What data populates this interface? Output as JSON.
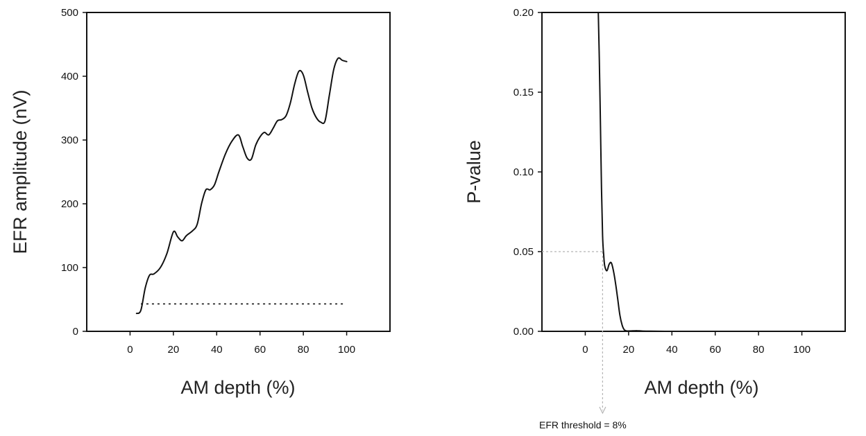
{
  "chart_data": [
    {
      "type": "line",
      "xlabel": "AM depth (%)",
      "ylabel": "EFR amplitude (nV)",
      "xlim": [
        -20,
        120
      ],
      "ylim": [
        0,
        500
      ],
      "x_ticks": [
        "0",
        "20",
        "40",
        "60",
        "80",
        "100"
      ],
      "y_ticks": [
        "0",
        "100",
        "200",
        "300",
        "400",
        "500"
      ],
      "grid": false,
      "series": [
        {
          "style": "solid",
          "color": "#111111",
          "x": [
            3,
            5,
            7,
            9,
            11,
            14,
            17,
            20,
            22,
            24,
            26,
            29,
            31,
            33,
            35,
            37,
            39,
            41,
            44,
            47,
            50,
            52,
            54,
            56,
            58,
            60,
            62,
            64,
            66,
            68,
            70,
            72,
            74,
            76,
            78,
            80,
            82,
            84,
            86,
            88,
            90,
            92,
            94,
            96,
            98,
            100
          ],
          "y": [
            28,
            33,
            68,
            88,
            90,
            100,
            122,
            156,
            148,
            142,
            150,
            158,
            168,
            200,
            222,
            222,
            230,
            250,
            278,
            298,
            308,
            290,
            272,
            270,
            292,
            305,
            312,
            308,
            318,
            330,
            332,
            338,
            358,
            388,
            408,
            402,
            375,
            350,
            335,
            328,
            330,
            370,
            410,
            428,
            425,
            423
          ]
        },
        {
          "style": "dotted",
          "color": "#111111",
          "x": [
            5,
            99
          ],
          "y": [
            43,
            43
          ]
        }
      ]
    },
    {
      "type": "line",
      "xlabel": "AM depth (%)",
      "ylabel": "P-value",
      "xlim": [
        -20,
        120
      ],
      "ylim": [
        0,
        0.2
      ],
      "x_ticks": [
        "0",
        "20",
        "40",
        "60",
        "80",
        "100"
      ],
      "y_ticks": [
        "0.00",
        "0.05",
        "0.10",
        "0.15",
        "0.20"
      ],
      "grid": false,
      "series": [
        {
          "style": "solid",
          "color": "#111111",
          "x": [
            6,
            6.5,
            7,
            7.5,
            8,
            8.5,
            9,
            10,
            11,
            12,
            13,
            14,
            15,
            16,
            17,
            18,
            19,
            20,
            22,
            24,
            26,
            30,
            40,
            60,
            80,
            100
          ],
          "y": [
            0.2,
            0.17,
            0.13,
            0.09,
            0.06,
            0.048,
            0.041,
            0.038,
            0.042,
            0.043,
            0.038,
            0.03,
            0.02,
            0.01,
            0.004,
            0.001,
            0.0003,
            0.0002,
            0.0003,
            0.0004,
            0.0002,
            0.0001,
            0.0,
            0.0,
            0.0,
            0.0
          ]
        }
      ],
      "threshold": {
        "p_value": 0.05,
        "am_depth": 8,
        "label": "EFR threshold = 8%",
        "line_color": "#b5b5b5"
      }
    }
  ]
}
